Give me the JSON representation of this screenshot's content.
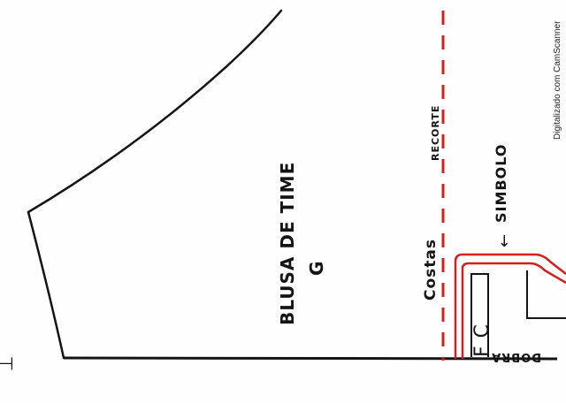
{
  "pattern": {
    "title": "BLUSA DE TIME",
    "size": "G",
    "back_label": "Costas",
    "cut_label": "RECORTE",
    "symbol_label": "SIMBOLO",
    "symbol_arrow": "←",
    "fold_label": "DOBRA",
    "fold_letters": "F C",
    "corner_mark": "⊥"
  },
  "watermark": {
    "text": "Digitalizado com CamScanner"
  },
  "colors": {
    "ink": "#141414",
    "red_line": "#d22020",
    "paper": "#fefefe"
  }
}
